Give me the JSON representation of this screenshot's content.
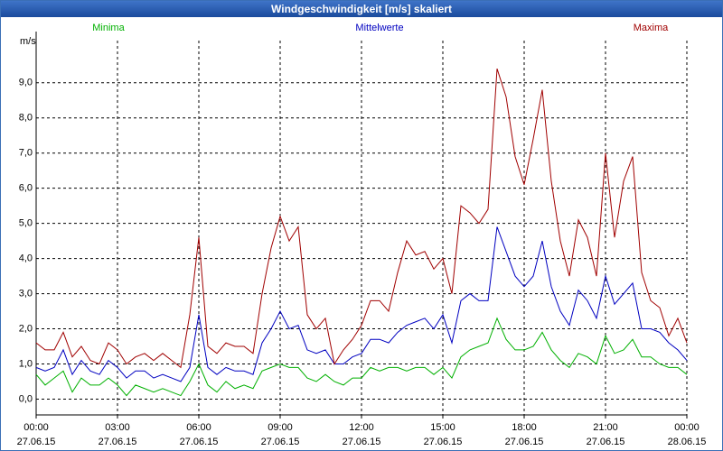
{
  "chart_data": {
    "type": "line",
    "title": "Windgeschwindigkeit [m/s] skaliert",
    "y_label": "m/s",
    "x": [
      0,
      20,
      40,
      60,
      80,
      100,
      120,
      140,
      160,
      180,
      200,
      220,
      240,
      260,
      280,
      300,
      320,
      340,
      360,
      380,
      400,
      420,
      440,
      460,
      480,
      500,
      520,
      540,
      560,
      580,
      600,
      620,
      640,
      660,
      680,
      700,
      720,
      740,
      760,
      780,
      800,
      820,
      840,
      860,
      880,
      900,
      920,
      940,
      960,
      980,
      1000,
      1020,
      1040,
      1060,
      1080,
      1100,
      1120,
      1140,
      1160,
      1180,
      1200,
      1220,
      1240,
      1260,
      1280,
      1300,
      1320,
      1340,
      1360,
      1380,
      1400,
      1420,
      1440
    ],
    "series": [
      {
        "name": "Minima",
        "color": "#00b000",
        "values": [
          0.7,
          0.4,
          0.6,
          0.8,
          0.2,
          0.6,
          0.4,
          0.4,
          0.6,
          0.4,
          0.1,
          0.4,
          0.3,
          0.2,
          0.3,
          0.2,
          0.1,
          0.5,
          1.0,
          0.4,
          0.2,
          0.5,
          0.3,
          0.4,
          0.3,
          0.8,
          0.9,
          1.0,
          0.9,
          0.9,
          0.6,
          0.5,
          0.7,
          0.5,
          0.4,
          0.6,
          0.6,
          0.9,
          0.8,
          0.9,
          0.9,
          0.8,
          0.9,
          0.9,
          0.7,
          0.9,
          0.6,
          1.2,
          1.4,
          1.5,
          1.6,
          2.3,
          1.7,
          1.4,
          1.4,
          1.5,
          1.9,
          1.4,
          1.1,
          0.9,
          1.3,
          1.2,
          1.0,
          1.8,
          1.3,
          1.4,
          1.7,
          1.2,
          1.2,
          1.0,
          0.9,
          0.9,
          0.7
        ]
      },
      {
        "name": "Mittelwerte",
        "color": "#0000c0",
        "values": [
          0.9,
          0.8,
          0.9,
          1.4,
          0.7,
          1.1,
          0.8,
          0.7,
          1.1,
          0.9,
          0.6,
          0.8,
          0.8,
          0.6,
          0.7,
          0.6,
          0.5,
          0.9,
          2.4,
          0.9,
          0.7,
          0.9,
          0.8,
          0.8,
          0.7,
          1.6,
          2.0,
          2.5,
          2.0,
          2.1,
          1.4,
          1.3,
          1.4,
          1.0,
          1.0,
          1.2,
          1.3,
          1.7,
          1.7,
          1.6,
          1.9,
          2.1,
          2.2,
          2.3,
          2.0,
          2.4,
          1.6,
          2.8,
          3.0,
          2.8,
          2.8,
          4.9,
          4.2,
          3.5,
          3.2,
          3.5,
          4.5,
          3.2,
          2.5,
          2.1,
          3.1,
          2.8,
          2.3,
          3.5,
          2.7,
          3.0,
          3.3,
          2.0,
          2.0,
          1.9,
          1.6,
          1.4,
          1.1
        ]
      },
      {
        "name": "Maxima",
        "color": "#a00000",
        "values": [
          1.6,
          1.4,
          1.4,
          1.9,
          1.2,
          1.5,
          1.1,
          1.0,
          1.6,
          1.4,
          1.0,
          1.2,
          1.3,
          1.1,
          1.3,
          1.1,
          0.9,
          2.4,
          4.6,
          1.5,
          1.3,
          1.6,
          1.5,
          1.5,
          1.3,
          3.0,
          4.3,
          5.2,
          4.5,
          4.9,
          2.4,
          2.0,
          2.3,
          1.0,
          1.4,
          1.7,
          2.1,
          2.8,
          2.8,
          2.5,
          3.6,
          4.5,
          4.1,
          4.2,
          3.7,
          4.0,
          3.0,
          5.5,
          5.3,
          5.0,
          5.4,
          9.4,
          8.6,
          6.9,
          6.1,
          7.4,
          8.8,
          6.2,
          4.5,
          3.5,
          5.1,
          4.6,
          3.5,
          7.0,
          4.6,
          6.2,
          6.9,
          3.6,
          2.8,
          2.6,
          1.8,
          2.3,
          1.6
        ]
      }
    ],
    "xlim": [
      0,
      1440
    ],
    "xticks": [
      {
        "value": 0,
        "label": "00:00",
        "date": "27.06.15"
      },
      {
        "value": 180,
        "label": "03:00",
        "date": "27.06.15"
      },
      {
        "value": 360,
        "label": "06:00",
        "date": "27.06.15"
      },
      {
        "value": 540,
        "label": "09:00",
        "date": "27.06.15"
      },
      {
        "value": 720,
        "label": "12:00",
        "date": "27.06.15"
      },
      {
        "value": 900,
        "label": "15:00",
        "date": "27.06.15"
      },
      {
        "value": 1080,
        "label": "18:00",
        "date": "27.06.15"
      },
      {
        "value": 1260,
        "label": "21:00",
        "date": "27.06.15"
      },
      {
        "value": 1440,
        "label": "00:00",
        "date": "28.06.15"
      }
    ],
    "ylim": [
      -0.45,
      10.2
    ],
    "yticks": [
      {
        "value": 0,
        "label": "0,0"
      },
      {
        "value": 1,
        "label": "1,0"
      },
      {
        "value": 2,
        "label": "2,0"
      },
      {
        "value": 3,
        "label": "3,0"
      },
      {
        "value": 4,
        "label": "4,0"
      },
      {
        "value": 5,
        "label": "5,0"
      },
      {
        "value": 6,
        "label": "6,0"
      },
      {
        "value": 7,
        "label": "7,0"
      },
      {
        "value": 8,
        "label": "8,0"
      },
      {
        "value": 9,
        "label": "9,0"
      }
    ],
    "grid": true
  }
}
